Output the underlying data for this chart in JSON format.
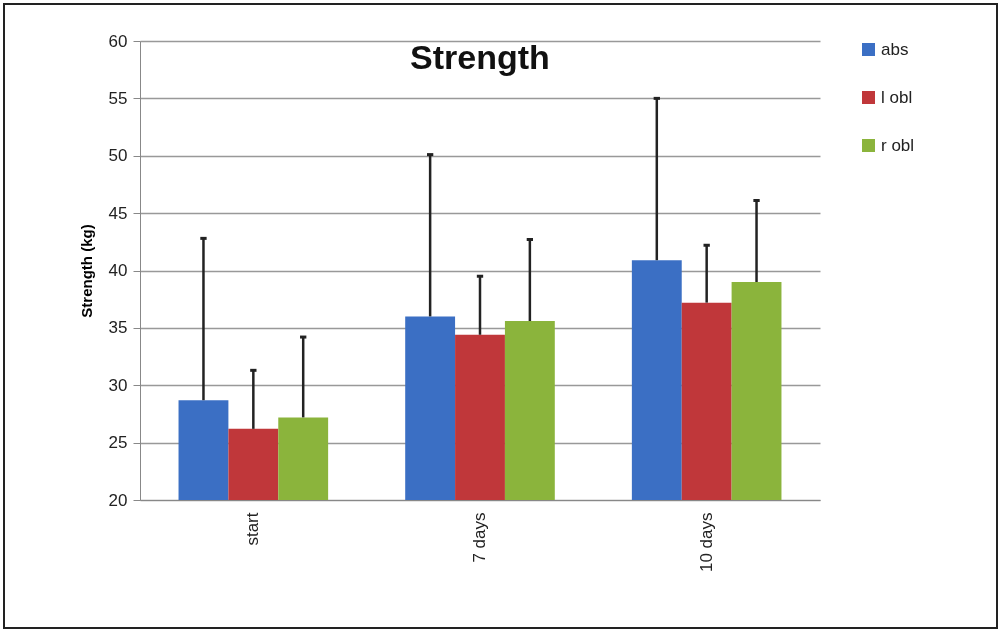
{
  "chart_data": {
    "type": "bar",
    "title": "Strength",
    "ylabel": "Strength (kg)",
    "categories": [
      "start",
      "7 days",
      "10 days"
    ],
    "series": [
      {
        "name": "abs",
        "color": "#3b6fc4",
        "values": [
          28.7,
          36.0,
          40.9
        ],
        "errors": [
          [
            28.7,
            42.8
          ],
          [
            36.0,
            50.1
          ],
          [
            40.9,
            55.0
          ]
        ]
      },
      {
        "name": "l obl",
        "color": "#c0373a",
        "values": [
          26.2,
          34.4,
          37.2
        ],
        "errors": [
          [
            26.2,
            31.3
          ],
          [
            34.4,
            39.5
          ],
          [
            37.2,
            42.2
          ]
        ]
      },
      {
        "name": "r obl",
        "color": "#8bb43c",
        "values": [
          27.2,
          35.6,
          39.0
        ],
        "errors": [
          [
            27.2,
            34.2
          ],
          [
            35.6,
            42.7
          ],
          [
            39.0,
            46.1
          ]
        ]
      }
    ],
    "ylim": [
      20,
      60
    ],
    "yticks": [
      20,
      25,
      30,
      35,
      40,
      45,
      50,
      55,
      60
    ],
    "grid": "y",
    "legend": "right"
  }
}
